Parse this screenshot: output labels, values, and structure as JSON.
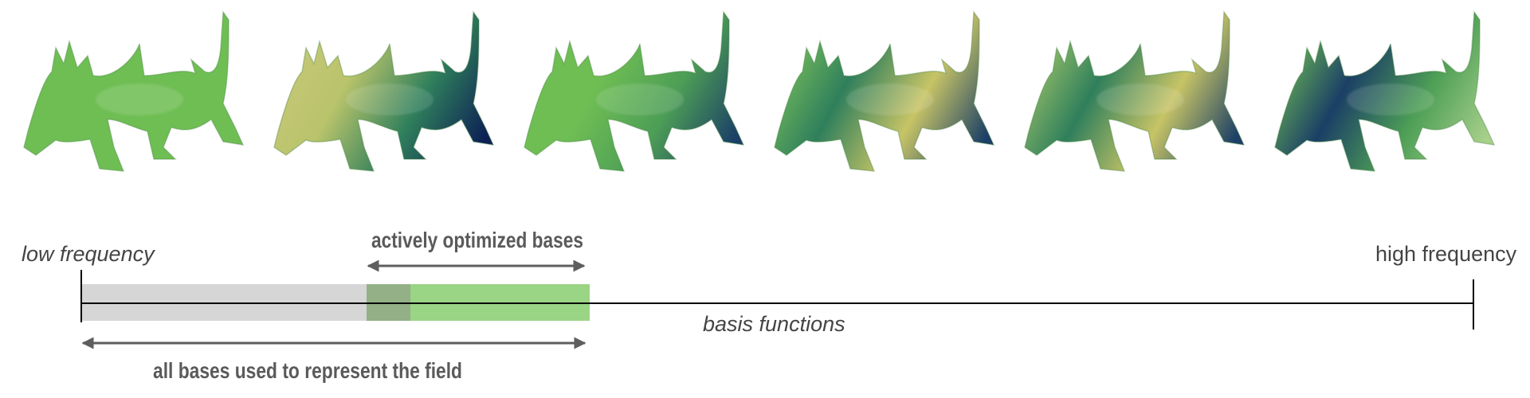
{
  "renders": [
    {
      "name": "dragon-render-1",
      "palette": [
        "#6fbe54",
        "#6fbe54",
        "#6fbe54",
        "#6fbe54"
      ]
    },
    {
      "name": "dragon-render-2",
      "palette": [
        "#c8c77a",
        "#b9c46b",
        "#2f7f5c",
        "#0d1f55"
      ]
    },
    {
      "name": "dragon-render-3",
      "palette": [
        "#6fbe54",
        "#6fbe54",
        "#4d9e56",
        "#1b3f66"
      ]
    },
    {
      "name": "dragon-render-4",
      "palette": [
        "#7cc25a",
        "#2f7f5c",
        "#c7c466",
        "#1b3f66"
      ]
    },
    {
      "name": "dragon-render-5",
      "palette": [
        "#a6c86a",
        "#2f7f5c",
        "#c7c466",
        "#1b3f66"
      ]
    },
    {
      "name": "dragon-render-6",
      "palette": [
        "#6fbe54",
        "#1b3f66",
        "#4d9e56",
        "#a7d08a"
      ]
    }
  ],
  "axis": {
    "low_label": "low frequency",
    "high_label": "high frequency",
    "center_label": "basis functions"
  },
  "annotations": {
    "active_label": "actively optimized bases",
    "all_label": "all bases used to represent the field"
  },
  "colors": {
    "inactive_band": "#d6d6d6",
    "overlap_band": "#93b087",
    "active_band": "#9ad485",
    "arrow": "#5e5e5e",
    "axis": "#000000"
  }
}
